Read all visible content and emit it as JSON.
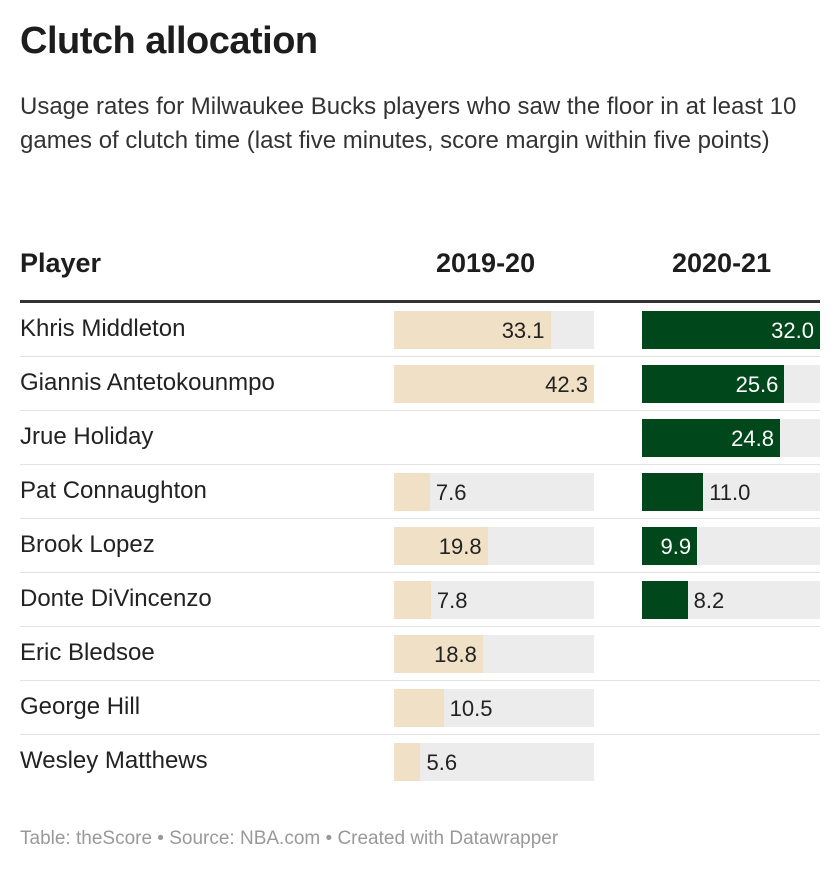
{
  "title": "Clutch allocation",
  "subtitle": "Usage rates for Milwaukee Bucks players who saw the floor in at least 10 games of clutch time (last five minutes, score margin within five points)",
  "footer": "Table: theScore • Source: NBA.com • Created with Datawrapper",
  "colors": {
    "col_2019": "#f0e1c6",
    "col_2020": "#00471b",
    "bar_bg": "#ececec"
  },
  "chart_data": {
    "type": "table",
    "columns": [
      "Player",
      "2019-20",
      "2020-21"
    ],
    "rows": [
      {
        "player": "Khris Middleton",
        "v2019": "33.1",
        "v2020": "32.0"
      },
      {
        "player": "Giannis Antetokounmpo",
        "v2019": "42.3",
        "v2020": "25.6"
      },
      {
        "player": "Jrue Holiday",
        "v2019": null,
        "v2020": "24.8"
      },
      {
        "player": "Pat Connaughton",
        "v2019": "7.6",
        "v2020": "11.0"
      },
      {
        "player": "Brook Lopez",
        "v2019": "19.8",
        "v2020": "9.9"
      },
      {
        "player": "Donte DiVincenzo",
        "v2019": "7.8",
        "v2020": "8.2"
      },
      {
        "player": "Eric Bledsoe",
        "v2019": "18.8",
        "v2020": null
      },
      {
        "player": "George Hill",
        "v2019": "10.5",
        "v2020": null
      },
      {
        "player": "Wesley Matthews",
        "v2019": "5.6",
        "v2020": null
      }
    ]
  }
}
